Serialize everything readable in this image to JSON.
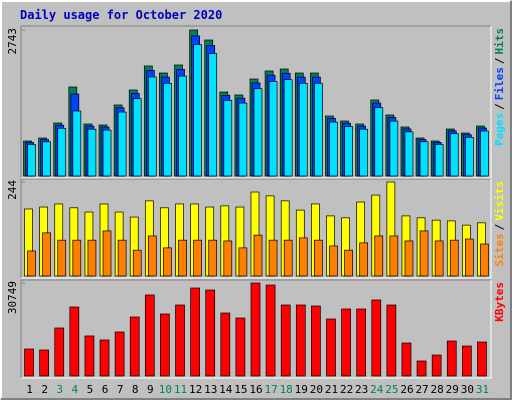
{
  "chart_data": {
    "type": "bar",
    "title": "Daily usage for October 2020",
    "categories": [
      "1",
      "2",
      "3",
      "4",
      "5",
      "6",
      "7",
      "8",
      "9",
      "10",
      "11",
      "12",
      "13",
      "14",
      "15",
      "16",
      "17",
      "18",
      "19",
      "20",
      "21",
      "22",
      "23",
      "24",
      "25",
      "26",
      "27",
      "28",
      "29",
      "30",
      "31"
    ],
    "category_colors": [
      "#000000",
      "#000000",
      "#00805c",
      "#00805c",
      "#000000",
      "#000000",
      "#000000",
      "#000000",
      "#000000",
      "#00805c",
      "#00805c",
      "#000000",
      "#000000",
      "#000000",
      "#000000",
      "#000000",
      "#00805c",
      "#00805c",
      "#000000",
      "#000000",
      "#000000",
      "#000000",
      "#000000",
      "#00805c",
      "#00805c",
      "#000000",
      "#000000",
      "#000000",
      "#000000",
      "#000000",
      "#00805c"
    ],
    "legend_separator": "/",
    "panels": [
      {
        "ylim": [
          0,
          2743
        ],
        "yticks": [
          2743
        ],
        "series": [
          {
            "name": "Hits",
            "color": "#00805c",
            "values": [
              658,
              714,
              996,
              1672,
              977,
              958,
              1334,
              1616,
              2067,
              1935,
              2086,
              2743,
              2555,
              1578,
              1522,
              1822,
              1973,
              2010,
              1935,
              1935,
              1127,
              1033,
              977,
              1428,
              1146,
              921,
              714,
              658,
              883,
              808,
              939
            ]
          },
          {
            "name": "Files",
            "color": "#0040ff",
            "values": [
              632,
              685,
              956,
              1540,
              938,
              920,
              1281,
              1551,
              1984,
              1858,
              2003,
              2633,
              2453,
              1515,
              1461,
              1749,
              1894,
              1930,
              1858,
              1858,
              1082,
              992,
              938,
              1371,
              1100,
              884,
              685,
              632,
              848,
              776,
              901
            ]
          },
          {
            "name": "Pages",
            "color": "#00e0ff",
            "values": [
              592,
              643,
              896,
              1221,
              879,
              862,
              1201,
              1454,
              1860,
              1742,
              1877,
              2469,
              2300,
              1420,
              1370,
              1640,
              1776,
              1809,
              1742,
              1742,
              1014,
              930,
              879,
              1285,
              1031,
              829,
              643,
              592,
              795,
              727,
              845
            ]
          }
        ]
      },
      {
        "ylim": [
          0,
          244
        ],
        "yticks": [
          244
        ],
        "series": [
          {
            "name": "Visits",
            "color": "#ffff00",
            "values": [
              174,
              179,
              187,
              177,
              166,
              187,
              166,
              153,
              195,
              177,
              187,
              187,
              179,
              182,
              179,
              218,
              208,
              195,
              171,
              187,
              156,
              151,
              192,
              210,
              244,
              156,
              151,
              145,
              143,
              132,
              138
            ]
          },
          {
            "name": "Sites",
            "color": "#ff8000",
            "values": [
              65,
              112,
              93,
              93,
              93,
              117,
              93,
              67,
              104,
              73,
              93,
              93,
              93,
              91,
              73,
              106,
              93,
              93,
              99,
              93,
              78,
              67,
              86,
              104,
              104,
              91,
              117,
              91,
              93,
              96,
              83
            ]
          }
        ]
      },
      {
        "ylim": [
          0,
          30749
        ],
        "yticks": [
          30749
        ],
        "series": [
          {
            "name": "KBytes",
            "color": "#ff0000",
            "values": [
              8927,
              8596,
              15870,
              22813,
              13243,
              11903,
              14548,
              19507,
              26781,
              20499,
              23475,
              29095,
              28434,
              20830,
              19177,
              30749,
              30088,
              23475,
              23475,
              23144,
              18846,
              22152,
              22152,
              25128,
              23475,
              10911,
              4959,
              6943,
              11572,
              9919,
              11242
            ]
          }
        ]
      }
    ]
  }
}
